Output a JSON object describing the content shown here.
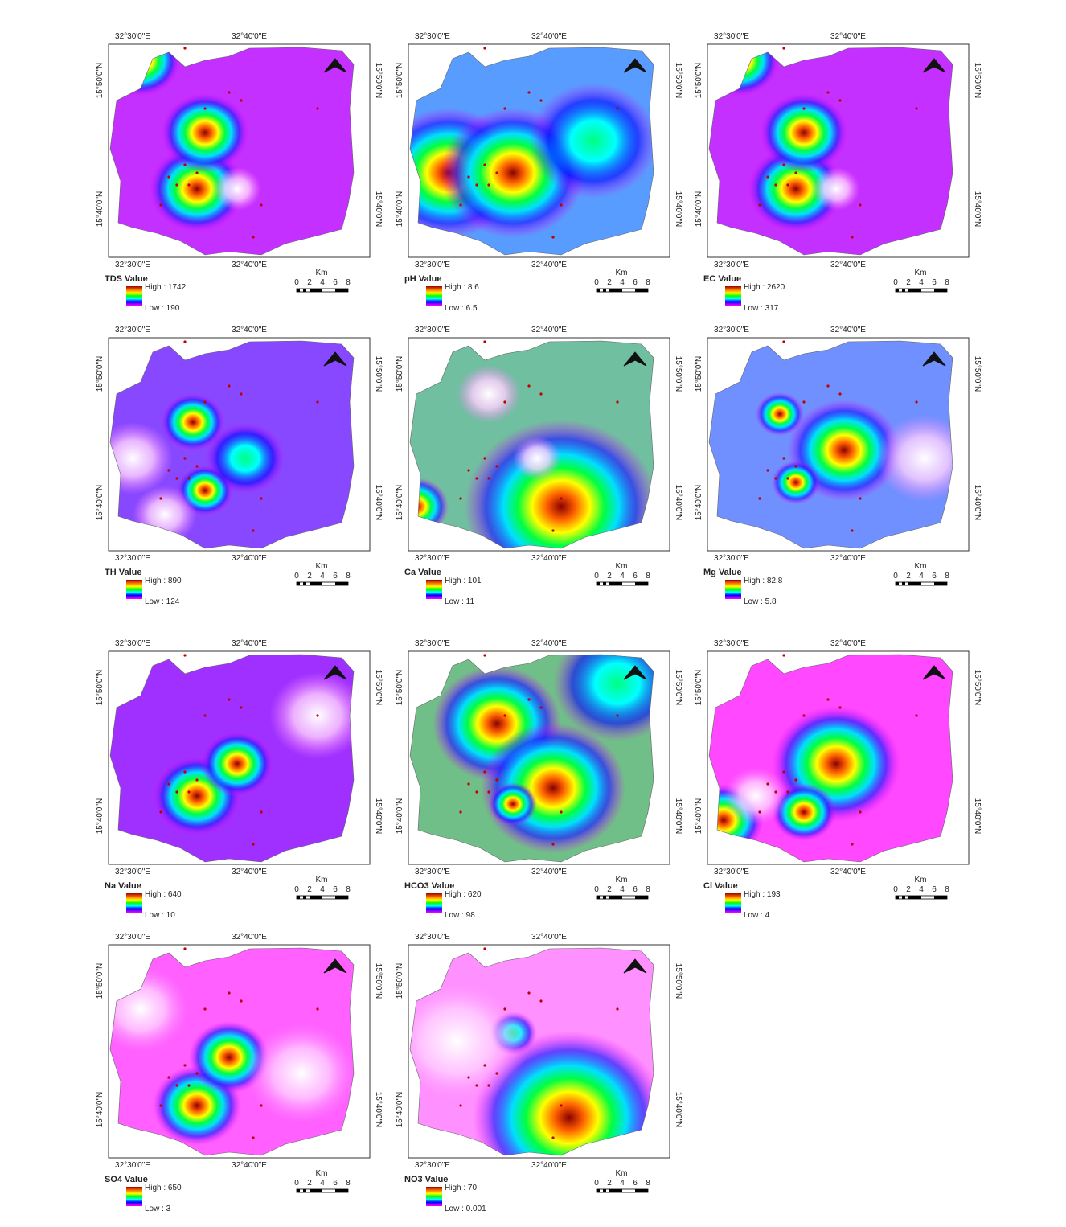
{
  "axis_labels": {
    "lon": [
      "32°30'0\"E",
      "32°40'0\"E"
    ],
    "lat": [
      "15°50'0\"N",
      "15°40'0\"N"
    ]
  },
  "scale": {
    "unit": "Km",
    "ticks": [
      "0",
      "2",
      "4",
      "6",
      "8"
    ]
  },
  "panels": [
    {
      "title": "TDS Value",
      "high": "High : 1742",
      "low": "Low : 190"
    },
    {
      "title": "pH Value",
      "high": "High : 8.6",
      "low": "Low : 6.5"
    },
    {
      "title": "EC Value",
      "high": "High : 2620",
      "low": "Low : 317"
    },
    {
      "title": "TH Value",
      "high": "High : 890",
      "low": "Low : 124"
    },
    {
      "title": "Ca Value",
      "high": "High : 101",
      "low": "Low : 11"
    },
    {
      "title": "Mg Value",
      "high": "High : 82.8",
      "low": "Low : 5.8"
    },
    {
      "title": "Na Value",
      "high": "High : 640",
      "low": "Low : 10"
    },
    {
      "title": "HCO3 Value",
      "high": "High : 620",
      "low": "Low : 98"
    },
    {
      "title": "Cl Value",
      "high": "High : 193",
      "low": "Low : 4"
    },
    {
      "title": "SO4 Value",
      "high": "High : 650",
      "low": "Low : 3"
    },
    {
      "title": "NO3 Value",
      "high": "High : 70",
      "low": "Low : 0.001"
    }
  ]
}
